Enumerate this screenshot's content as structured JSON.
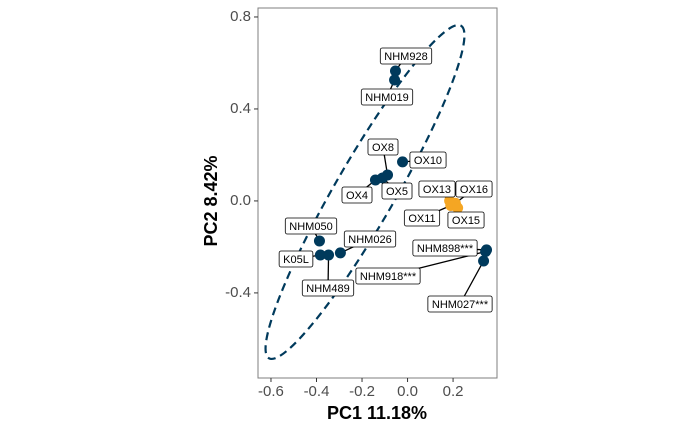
{
  "chart_data": {
    "type": "scatter",
    "x_label": "PC1 11.18%",
    "y_label": "PC2 8.42%",
    "labels": [
      "NHM928",
      "NHM019",
      "OX8",
      "OX10",
      "OX4",
      "OX5",
      "OX13",
      "OX16",
      "OX11",
      "OX15",
      "NHM050",
      "K05L",
      "NHM489",
      "NHM026",
      "NHM898***",
      "NHM918***",
      "NHM027***"
    ],
    "x": [
      -0.053,
      -0.057,
      -0.088,
      -0.022,
      -0.141,
      -0.11,
      0.185,
      0.21,
      0.19,
      0.22,
      -0.387,
      -0.383,
      -0.347,
      -0.295,
      0.347,
      0.343,
      0.334
    ],
    "y": [
      0.565,
      0.526,
      0.113,
      0.17,
      0.091,
      0.1,
      0.0,
      -0.01,
      -0.02,
      -0.03,
      -0.174,
      -0.235,
      -0.235,
      -0.226,
      -0.213,
      -0.22,
      -0.261
    ],
    "colors": [
      "#003a5c",
      "#003a5c",
      "#003a5c",
      "#003a5c",
      "#003a5c",
      "#003a5c",
      "#f5a623",
      "#f5a623",
      "#f5a623",
      "#f5a623",
      "#003a5c",
      "#003a5c",
      "#003a5c",
      "#003a5c",
      "#003a5c",
      "#003a5c",
      "#003a5c"
    ],
    "xlim": [
      -0.657,
      0.393
    ],
    "ylim": [
      -0.77,
      0.839
    ],
    "xticks": [
      -0.6,
      -0.4,
      -0.2,
      {
        "value": 0,
        "label": "0.0"
      },
      0.2
    ],
    "yticks": [
      -0.4,
      {
        "value": 0,
        "label": "0.0"
      },
      0.4,
      0.8
    ]
  }
}
